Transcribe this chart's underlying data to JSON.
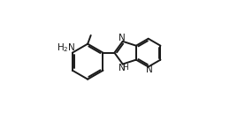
{
  "background": "#ffffff",
  "line_color": "#1a1a1a",
  "line_width": 1.4,
  "font_size": 7.5,
  "figsize": [
    2.77,
    1.29
  ],
  "dpi": 100,
  "xlim": [
    0.0,
    1.0
  ],
  "ylim": [
    0.0,
    1.0
  ]
}
